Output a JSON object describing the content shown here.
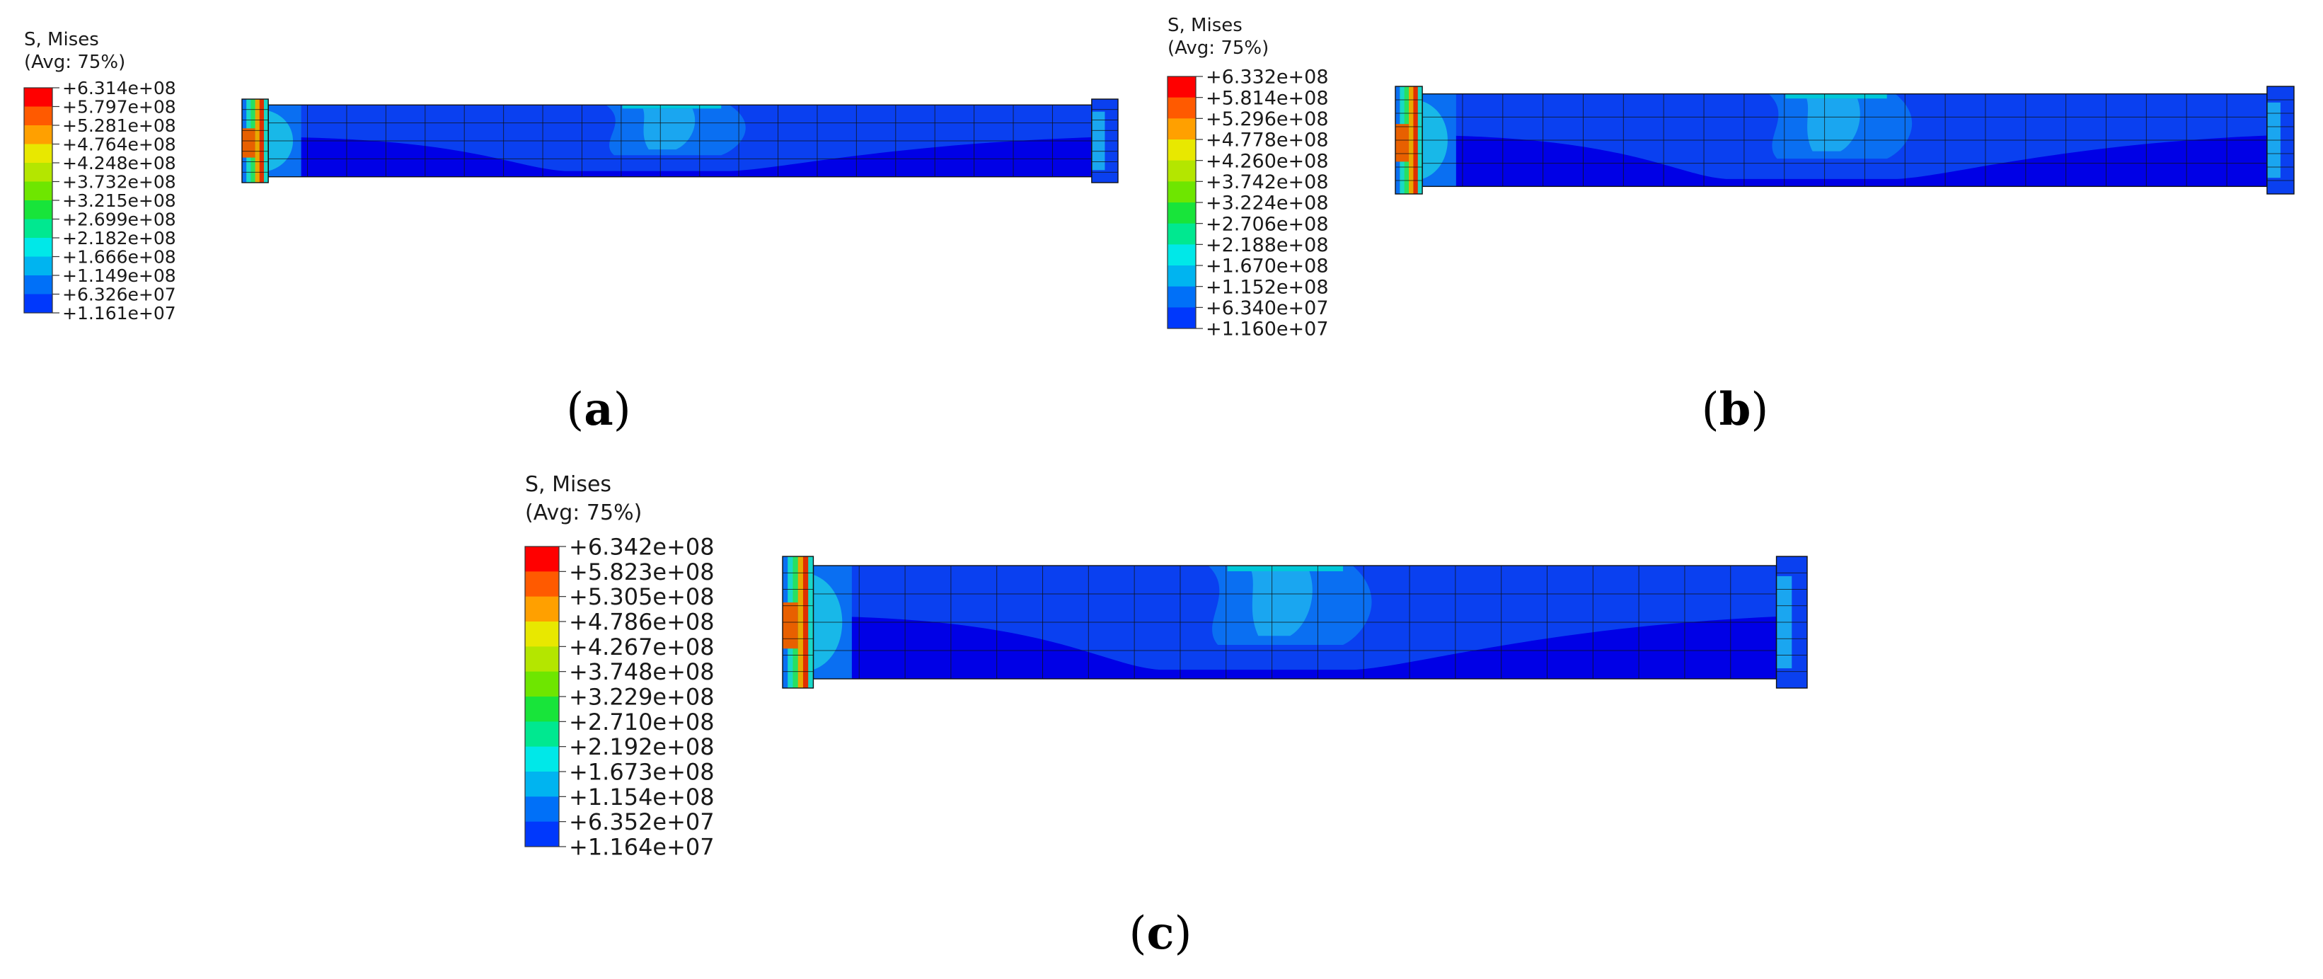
{
  "figure": {
    "colormap": [
      "#ff0000",
      "#ff5a00",
      "#ffa000",
      "#e8e800",
      "#b4e600",
      "#6ee600",
      "#18e43a",
      "#00e890",
      "#00e8e8",
      "#00b4f0",
      "#0070f8",
      "#0038fc",
      "#0000ff"
    ],
    "panels": [
      {
        "id": "a",
        "caption": "a",
        "legend": {
          "title_line1": "S, Mises",
          "title_line2": "(Avg: 75%)",
          "ticks": [
            "+6.314e+08",
            "+5.797e+08",
            "+5.281e+08",
            "+4.764e+08",
            "+4.248e+08",
            "+3.732e+08",
            "+3.215e+08",
            "+2.699e+08",
            "+2.182e+08",
            "+1.666e+08",
            "+1.149e+08",
            "+6.326e+07",
            "+1.161e+07"
          ]
        }
      },
      {
        "id": "b",
        "caption": "b",
        "legend": {
          "title_line1": "S, Mises",
          "title_line2": "(Avg: 75%)",
          "ticks": [
            "+6.332e+08",
            "+5.814e+08",
            "+5.296e+08",
            "+4.778e+08",
            "+4.260e+08",
            "+3.742e+08",
            "+3.224e+08",
            "+2.706e+08",
            "+2.188e+08",
            "+1.670e+08",
            "+1.152e+08",
            "+6.340e+07",
            "+1.160e+07"
          ]
        }
      },
      {
        "id": "c",
        "caption": "c",
        "legend": {
          "title_line1": "S, Mises",
          "title_line2": "(Avg: 75%)",
          "ticks": [
            "+6.342e+08",
            "+5.823e+08",
            "+5.305e+08",
            "+4.786e+08",
            "+4.267e+08",
            "+3.748e+08",
            "+3.229e+08",
            "+2.710e+08",
            "+2.192e+08",
            "+1.673e+08",
            "+1.154e+08",
            "+6.352e+07",
            "+1.164e+07"
          ]
        }
      }
    ]
  }
}
